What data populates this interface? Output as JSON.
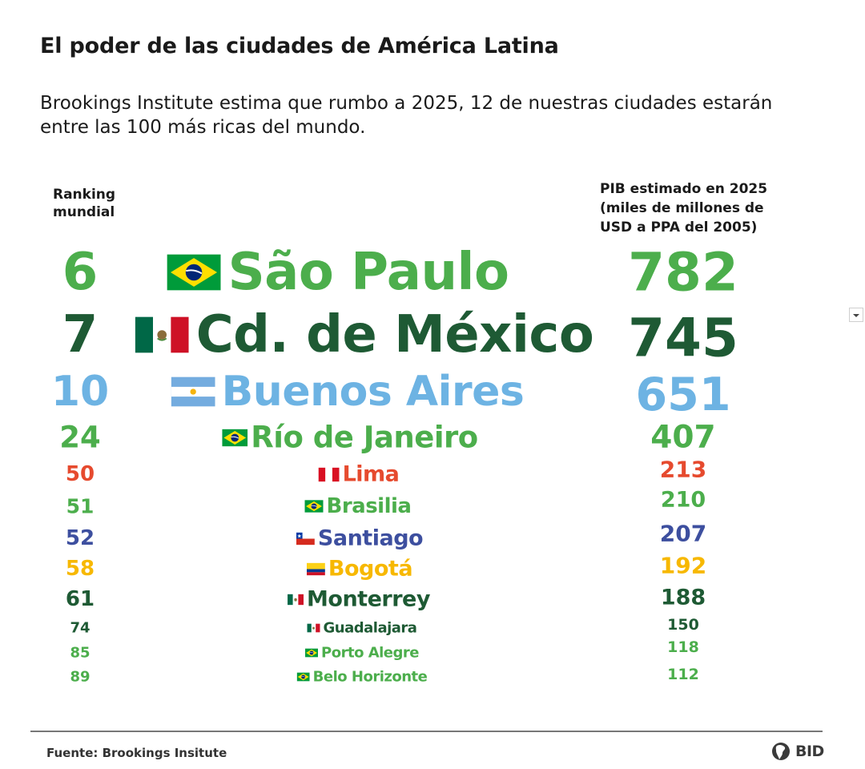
{
  "title": "El poder de las ciudades de América Latina",
  "subtitle": "Brookings Institute estima que rumbo a 2025, 12 de nuestras ciudades estarán entre las 100 más ricas del mundo.",
  "header_left": [
    "Ranking",
    "mundial"
  ],
  "header_right": [
    "PIB estimado en 2025",
    "(miles de millones de",
    "USD a PPA del 2005)"
  ],
  "source": "Fuente: Brookings Insitute",
  "logo": "BID",
  "colors": {
    "green": "#4cae4c",
    "dark_green": "#1e5a34",
    "light_blue": "#6db3e3",
    "red": "#e64a2e",
    "navy": "#3d4f9f",
    "yellow": "#f7b800"
  },
  "chart_data": {
    "type": "table",
    "columns": [
      "Ranking mundial",
      "Ciudad",
      "PIB estimado en 2025 (miles de millones de USD a PPA del 2005)"
    ],
    "rows": [
      {
        "rank": "6",
        "city": "São Paulo",
        "gdp": "782",
        "country": "brazil",
        "color": "#4cae4c"
      },
      {
        "rank": "7",
        "city": "Cd. de México",
        "gdp": "745",
        "country": "mexico",
        "color": "#1e5a34"
      },
      {
        "rank": "10",
        "city": "Buenos Aires",
        "gdp": "651",
        "country": "argentina",
        "color": "#6db3e3"
      },
      {
        "rank": "24",
        "city": "Río de Janeiro",
        "gdp": "407",
        "country": "brazil",
        "color": "#4cae4c"
      },
      {
        "rank": "50",
        "city": "Lima",
        "gdp": "213",
        "country": "peru",
        "color": "#e64a2e"
      },
      {
        "rank": "51",
        "city": "Brasilia",
        "gdp": "210",
        "country": "brazil",
        "color": "#4cae4c"
      },
      {
        "rank": "52",
        "city": "Santiago",
        "gdp": "207",
        "country": "chile",
        "color": "#3d4f9f"
      },
      {
        "rank": "58",
        "city": "Bogotá",
        "gdp": "192",
        "country": "colombia",
        "color": "#f7b800"
      },
      {
        "rank": "61",
        "city": "Monterrey",
        "gdp": "188",
        "country": "mexico",
        "color": "#1e5a34"
      },
      {
        "rank": "74",
        "city": "Guadalajara",
        "gdp": "150",
        "country": "mexico",
        "color": "#1e5a34"
      },
      {
        "rank": "85",
        "city": "Porto Alegre",
        "gdp": "118",
        "country": "brazil",
        "color": "#4cae4c"
      },
      {
        "rank": "89",
        "city": "Belo Horizonte",
        "gdp": "112",
        "country": "brazil",
        "color": "#4cae4c"
      }
    ]
  }
}
